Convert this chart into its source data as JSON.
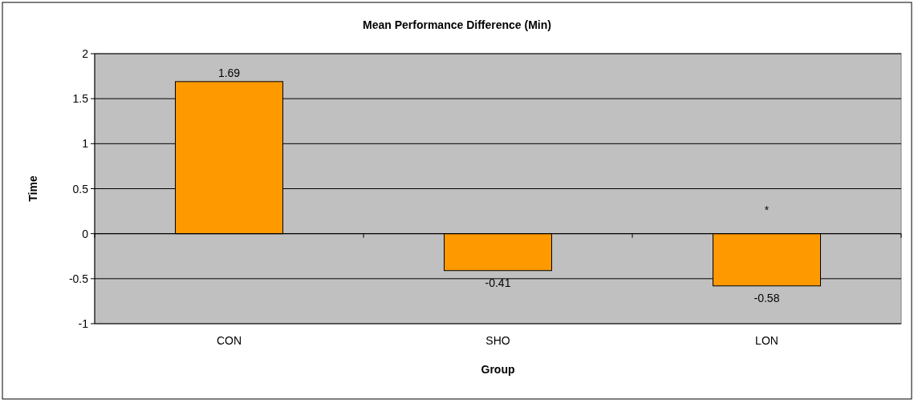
{
  "chart_data": {
    "type": "bar",
    "title": "Mean Performance Difference (Min)",
    "xlabel": "Group",
    "ylabel": "Time",
    "categories": [
      "CON",
      "SHO",
      "LON"
    ],
    "values": [
      1.69,
      -0.41,
      -0.58
    ],
    "color": "#ff9900",
    "ylim": [
      -1,
      2
    ],
    "yticks": [
      -1,
      -0.5,
      0,
      0.5,
      1,
      1.5,
      2
    ],
    "grid": "y",
    "data_labels": true,
    "annotations": [
      "*"
    ]
  }
}
